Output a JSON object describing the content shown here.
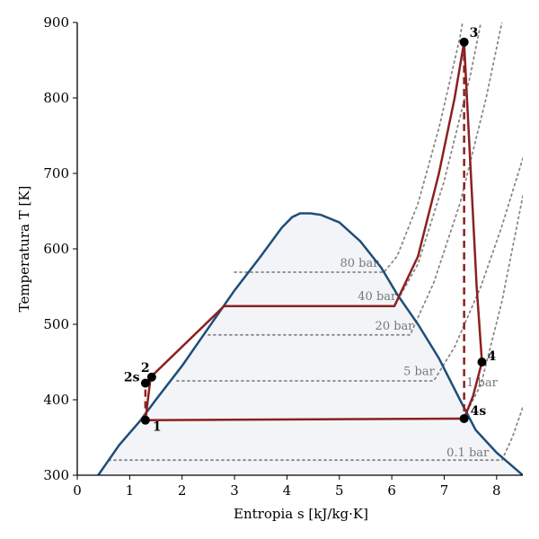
{
  "chart_data": {
    "type": "line",
    "xlabel": "Entropia s [kJ/kg·K]",
    "ylabel": "Temperatura T [K]",
    "xlim": [
      0,
      8.5
    ],
    "ylim": [
      300,
      900
    ],
    "xticks": [
      "0",
      "1",
      "2",
      "3",
      "4",
      "5",
      "6",
      "7",
      "8"
    ],
    "yticks": [
      "300",
      "400",
      "500",
      "600",
      "700",
      "800",
      "900"
    ],
    "grid": false,
    "colors": {
      "dome": "#1f4e79",
      "dome_fill": "#f3f4f8",
      "cycle": "#8b2020",
      "isobar": "#888888",
      "point": "#000000"
    },
    "saturation_dome": [
      [
        0.4,
        300
      ],
      [
        0.8,
        340
      ],
      [
        1.2,
        372
      ],
      [
        1.5,
        400
      ],
      [
        2.0,
        445
      ],
      [
        2.5,
        495
      ],
      [
        3.0,
        545
      ],
      [
        3.5,
        590
      ],
      [
        3.9,
        628
      ],
      [
        4.1,
        642
      ],
      [
        4.25,
        647
      ],
      [
        4.45,
        647
      ],
      [
        4.65,
        645
      ],
      [
        5.0,
        635
      ],
      [
        5.4,
        610
      ],
      [
        5.8,
        575
      ],
      [
        6.1,
        540
      ],
      [
        6.5,
        500
      ],
      [
        6.9,
        455
      ],
      [
        7.3,
        400
      ],
      [
        7.6,
        360
      ],
      [
        8.0,
        330
      ],
      [
        8.5,
        300
      ]
    ],
    "isobars": [
      {
        "label": "80 bar",
        "points": [
          [
            3.0,
            569
          ],
          [
            5.85,
            569
          ],
          [
            6.1,
            590
          ],
          [
            6.5,
            660
          ],
          [
            6.9,
            760
          ],
          [
            7.3,
            880
          ],
          [
            7.35,
            900
          ]
        ]
      },
      {
        "label": "40 bar",
        "points": [
          [
            2.8,
            524
          ],
          [
            6.05,
            524
          ],
          [
            6.5,
            580
          ],
          [
            7.0,
            690
          ],
          [
            7.5,
            830
          ],
          [
            7.7,
            900
          ]
        ]
      },
      {
        "label": "20 bar",
        "points": [
          [
            2.5,
            486
          ],
          [
            6.35,
            486
          ],
          [
            6.8,
            555
          ],
          [
            7.3,
            660
          ],
          [
            7.8,
            800
          ],
          [
            8.1,
            900
          ]
        ]
      },
      {
        "label": "5 bar",
        "points": [
          [
            1.9,
            425
          ],
          [
            6.8,
            425
          ],
          [
            7.2,
            470
          ],
          [
            7.7,
            550
          ],
          [
            8.1,
            630
          ],
          [
            8.5,
            720
          ]
        ]
      },
      {
        "label": "1 bar",
        "points": [
          [
            7.35,
            373
          ],
          [
            7.7,
            420
          ],
          [
            8.1,
            530
          ],
          [
            8.5,
            670
          ]
        ]
      },
      {
        "label": "0.1 bar",
        "points": [
          [
            0.6,
            320
          ],
          [
            8.1,
            320
          ],
          [
            8.3,
            350
          ],
          [
            8.5,
            390
          ]
        ]
      }
    ],
    "cycle_path": [
      [
        1.3,
        373
      ],
      [
        1.4,
        430
      ],
      [
        2.8,
        524
      ],
      [
        6.05,
        524
      ],
      [
        6.5,
        590
      ],
      [
        6.9,
        700
      ],
      [
        7.2,
        800
      ],
      [
        7.38,
        874
      ],
      [
        7.62,
        550
      ],
      [
        7.72,
        450
      ],
      [
        7.55,
        405
      ],
      [
        7.38,
        375
      ],
      [
        1.3,
        373
      ]
    ],
    "isentropic_dashed": [
      {
        "from": [
          1.3,
          373
        ],
        "to": [
          1.3,
          422
        ]
      },
      {
        "from": [
          7.38,
          874
        ],
        "to": [
          7.38,
          375
        ]
      }
    ],
    "points": [
      {
        "label": "1",
        "s": 1.3,
        "T": 373
      },
      {
        "label": "2",
        "s": 1.42,
        "T": 430
      },
      {
        "label": "2s",
        "s": 1.3,
        "T": 422
      },
      {
        "label": "3",
        "s": 7.38,
        "T": 874
      },
      {
        "label": "4",
        "s": 7.72,
        "T": 450
      },
      {
        "label": "4s",
        "s": 7.38,
        "T": 375
      }
    ]
  }
}
